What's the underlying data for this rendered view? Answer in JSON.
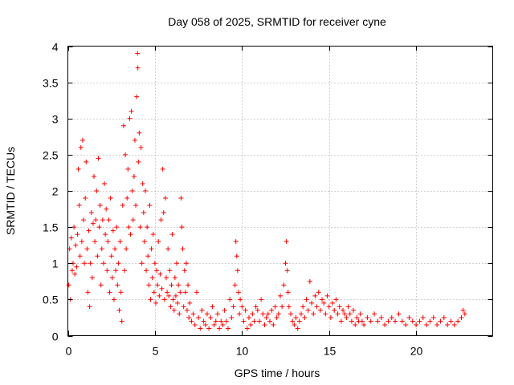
{
  "chart_data": {
    "type": "scatter",
    "title": "Day 058 of 2025, SRMTID for receiver cyne",
    "xlabel": "GPS time / hours",
    "ylabel": "SRMTID / TECUs",
    "xlim": [
      0,
      24.4
    ],
    "ylim": [
      0,
      4
    ],
    "x_ticks": [
      0,
      5,
      10,
      15,
      20
    ],
    "x_tick_labels": [
      "0",
      "5",
      "10",
      "15",
      "20"
    ],
    "y_ticks": [
      0,
      0.5,
      1,
      1.5,
      2,
      2.5,
      3,
      3.5,
      4
    ],
    "y_tick_labels": [
      "0",
      "0.5",
      "1",
      "1.5",
      "2",
      "2.5",
      "3",
      "3.5",
      "4"
    ],
    "grid": true,
    "marker": "+",
    "series": [
      {
        "name": "SRMTID",
        "color": "#ff0000",
        "points": [
          [
            0.05,
            0.7
          ],
          [
            0.1,
            1.2
          ],
          [
            0.15,
            0.5
          ],
          [
            0.2,
            1.35
          ],
          [
            0.25,
            0.9
          ],
          [
            0.3,
            1.0
          ],
          [
            0.35,
            1.5
          ],
          [
            0.4,
            0.85
          ],
          [
            0.45,
            1.25
          ],
          [
            0.5,
            0.95
          ],
          [
            0.55,
            1.4
          ],
          [
            0.6,
            2.3
          ],
          [
            0.65,
            1.8
          ],
          [
            0.7,
            1.1
          ],
          [
            0.75,
            2.6
          ],
          [
            0.8,
            1.3
          ],
          [
            0.85,
            2.7
          ],
          [
            0.9,
            1.6
          ],
          [
            0.95,
            1.0
          ],
          [
            1.0,
            1.9
          ],
          [
            1.05,
            2.4
          ],
          [
            1.1,
            1.2
          ],
          [
            1.15,
            0.6
          ],
          [
            1.2,
            1.45
          ],
          [
            1.25,
            0.4
          ],
          [
            1.3,
            1.0
          ],
          [
            1.35,
            1.7
          ],
          [
            1.4,
            0.8
          ],
          [
            1.45,
            1.55
          ],
          [
            1.5,
            2.2
          ],
          [
            1.55,
            1.3
          ],
          [
            1.6,
            1.6
          ],
          [
            1.65,
            2.0
          ],
          [
            1.7,
            1.1
          ],
          [
            1.75,
            2.45
          ],
          [
            1.8,
            1.5
          ],
          [
            1.85,
            1.8
          ],
          [
            1.9,
            0.7
          ],
          [
            1.95,
            1.2
          ],
          [
            2.0,
            1.6
          ],
          [
            2.05,
            1.0
          ],
          [
            2.1,
            2.1
          ],
          [
            2.15,
            1.4
          ],
          [
            2.2,
            1.75
          ],
          [
            2.25,
            0.9
          ],
          [
            2.3,
            1.3
          ],
          [
            2.35,
            1.6
          ],
          [
            2.4,
            0.6
          ],
          [
            2.45,
            1.9
          ],
          [
            2.5,
            1.1
          ],
          [
            2.55,
            0.8
          ],
          [
            2.6,
            1.45
          ],
          [
            2.65,
            0.5
          ],
          [
            2.7,
            1.2
          ],
          [
            2.75,
            0.9
          ],
          [
            2.8,
            1.5
          ],
          [
            2.85,
            0.7
          ],
          [
            2.9,
            1.0
          ],
          [
            2.95,
            0.35
          ],
          [
            3.0,
            1.3
          ],
          [
            3.05,
            0.6
          ],
          [
            3.1,
            0.2
          ],
          [
            3.15,
            1.8
          ],
          [
            3.2,
            2.9
          ],
          [
            3.25,
            0.9
          ],
          [
            3.3,
            2.5
          ],
          [
            3.35,
            1.2
          ],
          [
            3.4,
            1.9
          ],
          [
            3.45,
            2.3
          ],
          [
            3.5,
            1.5
          ],
          [
            3.55,
            3.0
          ],
          [
            3.6,
            1.4
          ],
          [
            3.65,
            3.1
          ],
          [
            3.7,
            2.0
          ],
          [
            3.75,
            1.6
          ],
          [
            3.8,
            2.2
          ],
          [
            3.85,
            2.7
          ],
          [
            3.9,
            1.8
          ],
          [
            3.95,
            3.3
          ],
          [
            4.0,
            3.9
          ],
          [
            4.02,
            3.7
          ],
          [
            4.05,
            2.4
          ],
          [
            4.1,
            2.8
          ],
          [
            4.15,
            1.5
          ],
          [
            4.2,
            2.6
          ],
          [
            4.25,
            1.0
          ],
          [
            4.3,
            2.1
          ],
          [
            4.35,
            1.7
          ],
          [
            4.4,
            1.3
          ],
          [
            4.45,
            2.0
          ],
          [
            4.5,
            0.9
          ],
          [
            4.55,
            1.5
          ],
          [
            4.6,
            1.1
          ],
          [
            4.65,
            0.7
          ],
          [
            4.7,
            1.8
          ],
          [
            4.75,
            0.5
          ],
          [
            4.8,
            1.2
          ],
          [
            4.85,
            0.8
          ],
          [
            4.9,
            1.4
          ],
          [
            4.95,
            0.6
          ],
          [
            5.0,
            1.0
          ],
          [
            5.05,
            0.45
          ],
          [
            5.1,
            0.9
          ],
          [
            5.15,
            0.7
          ],
          [
            5.2,
            1.3
          ],
          [
            5.25,
            0.55
          ],
          [
            5.3,
            0.85
          ],
          [
            5.35,
            1.6
          ],
          [
            5.4,
            0.65
          ],
          [
            5.45,
            2.3
          ],
          [
            5.5,
            1.7
          ],
          [
            5.55,
            0.5
          ],
          [
            5.6,
            1.9
          ],
          [
            5.65,
            0.8
          ],
          [
            5.7,
            0.6
          ],
          [
            5.75,
            1.2
          ],
          [
            5.8,
            0.55
          ],
          [
            5.85,
            0.9
          ],
          [
            5.9,
            0.4
          ],
          [
            5.95,
            0.7
          ],
          [
            6.0,
            1.4
          ],
          [
            6.05,
            0.5
          ],
          [
            6.1,
            0.35
          ],
          [
            6.15,
            0.8
          ],
          [
            6.2,
            0.55
          ],
          [
            6.25,
            1.0
          ],
          [
            6.3,
            0.45
          ],
          [
            6.35,
            0.7
          ],
          [
            6.4,
            0.3
          ],
          [
            6.45,
            0.6
          ],
          [
            6.5,
            1.9
          ],
          [
            6.55,
            1.5
          ],
          [
            6.6,
            1.2
          ],
          [
            6.65,
            0.4
          ],
          [
            6.7,
            0.9
          ],
          [
            6.75,
            0.6
          ],
          [
            6.8,
            1.0
          ],
          [
            6.85,
            0.35
          ],
          [
            6.9,
            0.7
          ],
          [
            6.95,
            0.25
          ],
          [
            7.0,
            0.45
          ],
          [
            7.1,
            0.2
          ],
          [
            7.2,
            0.3
          ],
          [
            7.3,
            0.15
          ],
          [
            7.4,
            0.6
          ],
          [
            7.5,
            0.25
          ],
          [
            7.6,
            0.1
          ],
          [
            7.7,
            0.35
          ],
          [
            7.8,
            0.2
          ],
          [
            7.9,
            0.15
          ],
          [
            8.0,
            0.3
          ],
          [
            8.1,
            0.1
          ],
          [
            8.2,
            0.25
          ],
          [
            8.3,
            0.4
          ],
          [
            8.4,
            0.15
          ],
          [
            8.5,
            0.2
          ],
          [
            8.6,
            0.3
          ],
          [
            8.7,
            0.1
          ],
          [
            8.8,
            0.2
          ],
          [
            8.9,
            0.15
          ],
          [
            9.0,
            0.35
          ],
          [
            9.1,
            0.2
          ],
          [
            9.2,
            0.1
          ],
          [
            9.3,
            0.5
          ],
          [
            9.4,
            0.25
          ],
          [
            9.5,
            0.4
          ],
          [
            9.6,
            0.7
          ],
          [
            9.65,
            1.3
          ],
          [
            9.7,
            1.1
          ],
          [
            9.75,
            0.9
          ],
          [
            9.8,
            0.6
          ],
          [
            9.85,
            0.3
          ],
          [
            9.9,
            0.5
          ],
          [
            10.0,
            0.4
          ],
          [
            10.1,
            0.2
          ],
          [
            10.2,
            0.35
          ],
          [
            10.3,
            0.1
          ],
          [
            10.4,
            0.25
          ],
          [
            10.5,
            0.15
          ],
          [
            10.6,
            0.3
          ],
          [
            10.7,
            0.2
          ],
          [
            10.8,
            0.4
          ],
          [
            10.9,
            0.35
          ],
          [
            11.0,
            0.2
          ],
          [
            11.1,
            0.5
          ],
          [
            11.2,
            0.3
          ],
          [
            11.3,
            0.15
          ],
          [
            11.4,
            0.25
          ],
          [
            11.5,
            0.3
          ],
          [
            11.6,
            0.2
          ],
          [
            11.7,
            0.35
          ],
          [
            11.8,
            0.15
          ],
          [
            11.9,
            0.4
          ],
          [
            12.0,
            0.25
          ],
          [
            12.1,
            0.3
          ],
          [
            12.2,
            0.55
          ],
          [
            12.3,
            0.4
          ],
          [
            12.4,
            0.7
          ],
          [
            12.5,
            1.0
          ],
          [
            12.55,
            1.3
          ],
          [
            12.6,
            0.9
          ],
          [
            12.65,
            0.6
          ],
          [
            12.7,
            0.4
          ],
          [
            12.8,
            0.3
          ],
          [
            12.9,
            0.2
          ],
          [
            13.0,
            0.15
          ],
          [
            13.1,
            0.25
          ],
          [
            13.2,
            0.1
          ],
          [
            13.3,
            0.2
          ],
          [
            13.4,
            0.3
          ],
          [
            13.5,
            0.4
          ],
          [
            13.6,
            0.25
          ],
          [
            13.7,
            0.5
          ],
          [
            13.8,
            0.35
          ],
          [
            13.9,
            0.75
          ],
          [
            14.0,
            0.45
          ],
          [
            14.1,
            0.3
          ],
          [
            14.2,
            0.55
          ],
          [
            14.3,
            0.4
          ],
          [
            14.4,
            0.6
          ],
          [
            14.5,
            0.35
          ],
          [
            14.6,
            0.5
          ],
          [
            14.7,
            0.45
          ],
          [
            14.8,
            0.3
          ],
          [
            14.9,
            0.55
          ],
          [
            15.0,
            0.4
          ],
          [
            15.1,
            0.25
          ],
          [
            15.2,
            0.45
          ],
          [
            15.3,
            0.35
          ],
          [
            15.4,
            0.5
          ],
          [
            15.5,
            0.3
          ],
          [
            15.6,
            0.4
          ],
          [
            15.7,
            0.2
          ],
          [
            15.8,
            0.35
          ],
          [
            15.9,
            0.3
          ],
          [
            16.0,
            0.25
          ],
          [
            16.1,
            0.4
          ],
          [
            16.2,
            0.3
          ],
          [
            16.3,
            0.2
          ],
          [
            16.4,
            0.35
          ],
          [
            16.5,
            0.15
          ],
          [
            16.6,
            0.25
          ],
          [
            16.7,
            0.2
          ],
          [
            16.8,
            0.3
          ],
          [
            16.9,
            0.2
          ],
          [
            17.0,
            0.15
          ],
          [
            17.2,
            0.25
          ],
          [
            17.4,
            0.2
          ],
          [
            17.6,
            0.3
          ],
          [
            17.8,
            0.2
          ],
          [
            18.0,
            0.25
          ],
          [
            18.2,
            0.15
          ],
          [
            18.4,
            0.2
          ],
          [
            18.6,
            0.25
          ],
          [
            18.8,
            0.2
          ],
          [
            19.0,
            0.3
          ],
          [
            19.2,
            0.2
          ],
          [
            19.4,
            0.15
          ],
          [
            19.6,
            0.25
          ],
          [
            19.8,
            0.2
          ],
          [
            20.0,
            0.15
          ],
          [
            20.2,
            0.2
          ],
          [
            20.4,
            0.25
          ],
          [
            20.6,
            0.15
          ],
          [
            20.8,
            0.2
          ],
          [
            21.0,
            0.25
          ],
          [
            21.2,
            0.15
          ],
          [
            21.4,
            0.2
          ],
          [
            21.6,
            0.25
          ],
          [
            21.8,
            0.15
          ],
          [
            22.0,
            0.2
          ],
          [
            22.2,
            0.15
          ],
          [
            22.4,
            0.2
          ],
          [
            22.6,
            0.25
          ],
          [
            22.7,
            0.35
          ],
          [
            22.8,
            0.3
          ]
        ]
      }
    ]
  }
}
